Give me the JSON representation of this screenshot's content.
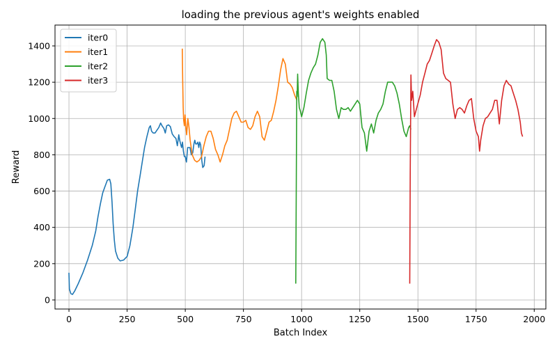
{
  "chart_data": {
    "type": "line",
    "title": "loading the previous agent's weights enabled",
    "xlabel": "Batch Index",
    "ylabel": "Reward",
    "xlim": [
      -60,
      2050
    ],
    "ylim": [
      -50,
      1515
    ],
    "xticks": [
      0,
      250,
      500,
      750,
      1000,
      1250,
      1500,
      1750,
      2000
    ],
    "yticks": [
      0,
      200,
      400,
      600,
      800,
      1000,
      1200,
      1400
    ],
    "grid": true,
    "legend_position": "top-left",
    "series": [
      {
        "name": "iter0",
        "color": "#1f77b4",
        "points": [
          [
            0,
            150
          ],
          [
            2,
            60
          ],
          [
            8,
            35
          ],
          [
            15,
            30
          ],
          [
            25,
            50
          ],
          [
            40,
            90
          ],
          [
            60,
            150
          ],
          [
            80,
            220
          ],
          [
            100,
            300
          ],
          [
            115,
            380
          ],
          [
            125,
            460
          ],
          [
            135,
            530
          ],
          [
            145,
            590
          ],
          [
            155,
            625
          ],
          [
            165,
            660
          ],
          [
            175,
            665
          ],
          [
            180,
            640
          ],
          [
            185,
            540
          ],
          [
            190,
            420
          ],
          [
            195,
            330
          ],
          [
            200,
            270
          ],
          [
            210,
            230
          ],
          [
            220,
            215
          ],
          [
            235,
            220
          ],
          [
            250,
            240
          ],
          [
            262,
            300
          ],
          [
            275,
            400
          ],
          [
            285,
            500
          ],
          [
            295,
            600
          ],
          [
            305,
            680
          ],
          [
            315,
            760
          ],
          [
            325,
            840
          ],
          [
            335,
            900
          ],
          [
            345,
            950
          ],
          [
            350,
            960
          ],
          [
            355,
            930
          ],
          [
            362,
            920
          ],
          [
            370,
            920
          ],
          [
            378,
            935
          ],
          [
            386,
            950
          ],
          [
            394,
            975
          ],
          [
            400,
            960
          ],
          [
            408,
            945
          ],
          [
            414,
            920
          ],
          [
            420,
            960
          ],
          [
            428,
            965
          ],
          [
            436,
            955
          ],
          [
            444,
            915
          ],
          [
            452,
            900
          ],
          [
            460,
            890
          ],
          [
            466,
            850
          ],
          [
            472,
            910
          ],
          [
            476,
            880
          ],
          [
            480,
            860
          ],
          [
            484,
            840
          ],
          [
            488,
            870
          ],
          [
            492,
            820
          ],
          [
            496,
            790
          ],
          [
            500,
            790
          ],
          [
            505,
            760
          ],
          [
            510,
            840
          ],
          [
            515,
            840
          ],
          [
            520,
            840
          ],
          [
            526,
            800
          ],
          [
            532,
            810
          ],
          [
            537,
            860
          ],
          [
            541,
            880
          ],
          [
            545,
            860
          ],
          [
            550,
            860
          ],
          [
            554,
            870
          ],
          [
            558,
            840
          ],
          [
            562,
            870
          ],
          [
            566,
            855
          ],
          [
            571,
            770
          ],
          [
            575,
            730
          ],
          [
            581,
            740
          ],
          [
            585,
            790
          ]
        ]
      },
      {
        "name": "iter1",
        "color": "#ff7f0e",
        "points": [
          [
            487,
            1385
          ],
          [
            489,
            1210
          ],
          [
            491,
            1060
          ],
          [
            493,
            990
          ],
          [
            496,
            960
          ],
          [
            499,
            1020
          ],
          [
            502,
            960
          ],
          [
            506,
            910
          ],
          [
            511,
            1000
          ],
          [
            516,
            950
          ],
          [
            521,
            880
          ],
          [
            530,
            800
          ],
          [
            540,
            770
          ],
          [
            550,
            760
          ],
          [
            560,
            770
          ],
          [
            570,
            790
          ],
          [
            580,
            850
          ],
          [
            590,
            900
          ],
          [
            600,
            930
          ],
          [
            610,
            930
          ],
          [
            620,
            890
          ],
          [
            630,
            830
          ],
          [
            640,
            800
          ],
          [
            650,
            760
          ],
          [
            660,
            800
          ],
          [
            670,
            850
          ],
          [
            680,
            880
          ],
          [
            690,
            940
          ],
          [
            700,
            1000
          ],
          [
            710,
            1030
          ],
          [
            720,
            1040
          ],
          [
            730,
            1010
          ],
          [
            740,
            980
          ],
          [
            750,
            980
          ],
          [
            760,
            990
          ],
          [
            770,
            950
          ],
          [
            780,
            940
          ],
          [
            790,
            960
          ],
          [
            800,
            1010
          ],
          [
            810,
            1040
          ],
          [
            820,
            1010
          ],
          [
            830,
            900
          ],
          [
            840,
            880
          ],
          [
            850,
            930
          ],
          [
            860,
            980
          ],
          [
            870,
            990
          ],
          [
            880,
            1040
          ],
          [
            890,
            1100
          ],
          [
            900,
            1180
          ],
          [
            910,
            1270
          ],
          [
            920,
            1330
          ],
          [
            930,
            1300
          ],
          [
            940,
            1200
          ],
          [
            950,
            1190
          ],
          [
            960,
            1170
          ],
          [
            970,
            1130
          ],
          [
            980,
            1100
          ]
        ]
      },
      {
        "name": "iter2",
        "color": "#2ca02c",
        "points": [
          [
            975,
            90
          ],
          [
            977,
            600
          ],
          [
            979,
            1150
          ],
          [
            981,
            1120
          ],
          [
            983,
            1245
          ],
          [
            986,
            1140
          ],
          [
            990,
            1060
          ],
          [
            995,
            1040
          ],
          [
            1000,
            1010
          ],
          [
            1010,
            1060
          ],
          [
            1020,
            1140
          ],
          [
            1030,
            1210
          ],
          [
            1040,
            1250
          ],
          [
            1050,
            1280
          ],
          [
            1060,
            1300
          ],
          [
            1070,
            1350
          ],
          [
            1080,
            1420
          ],
          [
            1090,
            1440
          ],
          [
            1100,
            1420
          ],
          [
            1106,
            1350
          ],
          [
            1110,
            1220
          ],
          [
            1120,
            1210
          ],
          [
            1130,
            1210
          ],
          [
            1140,
            1150
          ],
          [
            1150,
            1050
          ],
          [
            1160,
            1000
          ],
          [
            1170,
            1060
          ],
          [
            1180,
            1050
          ],
          [
            1190,
            1050
          ],
          [
            1200,
            1060
          ],
          [
            1210,
            1040
          ],
          [
            1220,
            1060
          ],
          [
            1230,
            1080
          ],
          [
            1240,
            1100
          ],
          [
            1250,
            1080
          ],
          [
            1260,
            950
          ],
          [
            1270,
            920
          ],
          [
            1280,
            820
          ],
          [
            1290,
            930
          ],
          [
            1300,
            970
          ],
          [
            1310,
            920
          ],
          [
            1320,
            990
          ],
          [
            1330,
            1030
          ],
          [
            1340,
            1050
          ],
          [
            1350,
            1080
          ],
          [
            1360,
            1150
          ],
          [
            1370,
            1200
          ],
          [
            1380,
            1200
          ],
          [
            1390,
            1200
          ],
          [
            1400,
            1180
          ],
          [
            1410,
            1140
          ],
          [
            1420,
            1080
          ],
          [
            1430,
            1000
          ],
          [
            1440,
            930
          ],
          [
            1450,
            900
          ],
          [
            1460,
            950
          ],
          [
            1465,
            960
          ],
          [
            1470,
            940
          ]
        ]
      },
      {
        "name": "iter3",
        "color": "#d62728",
        "points": [
          [
            1465,
            90
          ],
          [
            1467,
            700
          ],
          [
            1470,
            1240
          ],
          [
            1473,
            1100
          ],
          [
            1478,
            1150
          ],
          [
            1485,
            1010
          ],
          [
            1495,
            1060
          ],
          [
            1510,
            1130
          ],
          [
            1520,
            1200
          ],
          [
            1530,
            1250
          ],
          [
            1540,
            1300
          ],
          [
            1550,
            1320
          ],
          [
            1560,
            1360
          ],
          [
            1570,
            1400
          ],
          [
            1580,
            1435
          ],
          [
            1590,
            1420
          ],
          [
            1600,
            1380
          ],
          [
            1610,
            1250
          ],
          [
            1620,
            1220
          ],
          [
            1630,
            1210
          ],
          [
            1640,
            1200
          ],
          [
            1650,
            1080
          ],
          [
            1660,
            1000
          ],
          [
            1670,
            1050
          ],
          [
            1680,
            1060
          ],
          [
            1690,
            1050
          ],
          [
            1700,
            1030
          ],
          [
            1710,
            1070
          ],
          [
            1720,
            1100
          ],
          [
            1730,
            1110
          ],
          [
            1740,
            1000
          ],
          [
            1750,
            930
          ],
          [
            1760,
            900
          ],
          [
            1765,
            820
          ],
          [
            1770,
            880
          ],
          [
            1780,
            960
          ],
          [
            1790,
            1000
          ],
          [
            1800,
            1010
          ],
          [
            1810,
            1030
          ],
          [
            1820,
            1050
          ],
          [
            1830,
            1100
          ],
          [
            1840,
            1100
          ],
          [
            1850,
            970
          ],
          [
            1860,
            1100
          ],
          [
            1870,
            1180
          ],
          [
            1880,
            1210
          ],
          [
            1890,
            1190
          ],
          [
            1900,
            1180
          ],
          [
            1910,
            1140
          ],
          [
            1920,
            1100
          ],
          [
            1930,
            1050
          ],
          [
            1940,
            980
          ],
          [
            1945,
            920
          ],
          [
            1950,
            900
          ]
        ]
      }
    ]
  }
}
